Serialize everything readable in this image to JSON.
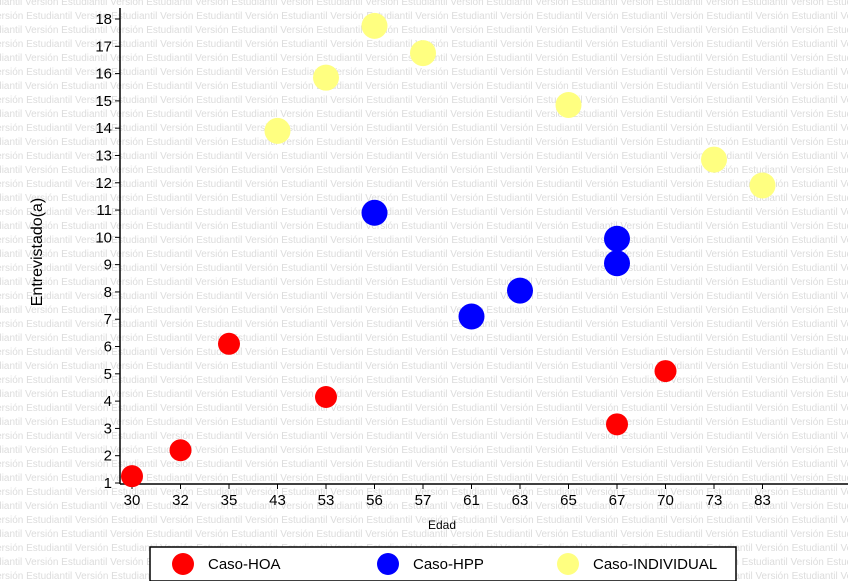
{
  "watermark": "Versión Estudiantil",
  "chart_data": {
    "type": "scatter",
    "xlabel": "Edad",
    "ylabel": "Entrevistado(a)",
    "categories": [
      "30",
      "32",
      "35",
      "43",
      "53",
      "56",
      "57",
      "61",
      "63",
      "65",
      "67",
      "70",
      "73",
      "83"
    ],
    "yticks": [
      1,
      2,
      3,
      4,
      5,
      6,
      7,
      8,
      9,
      10,
      11,
      12,
      13,
      14,
      15,
      16,
      17,
      18
    ],
    "ylim": [
      1,
      18
    ],
    "grid": false,
    "legend_position": "bottom",
    "series": [
      {
        "name": "Caso-HOA",
        "color": "#ff0000",
        "points": [
          {
            "x": "30",
            "y": 1.25
          },
          {
            "x": "32",
            "y": 2.2
          },
          {
            "x": "35",
            "y": 6.1
          },
          {
            "x": "53",
            "y": 4.15
          },
          {
            "x": "67",
            "y": 3.15
          },
          {
            "x": "70",
            "y": 5.1
          }
        ]
      },
      {
        "name": "Caso-HPP",
        "color": "#0000ff",
        "points": [
          {
            "x": "56",
            "y": 10.9
          },
          {
            "x": "61",
            "y": 7.1
          },
          {
            "x": "63",
            "y": 8.05
          },
          {
            "x": "67",
            "y": 9.05
          },
          {
            "x": "67",
            "y": 9.95
          }
        ]
      },
      {
        "name": "Caso-INDIVIDUAL",
        "color": "#ffff80",
        "points": [
          {
            "x": "43",
            "y": 13.9
          },
          {
            "x": "53",
            "y": 15.85
          },
          {
            "x": "56",
            "y": 17.75
          },
          {
            "x": "57",
            "y": 16.75
          },
          {
            "x": "65",
            "y": 14.85
          },
          {
            "x": "73",
            "y": 12.85
          },
          {
            "x": "83",
            "y": 11.9
          }
        ]
      }
    ]
  }
}
